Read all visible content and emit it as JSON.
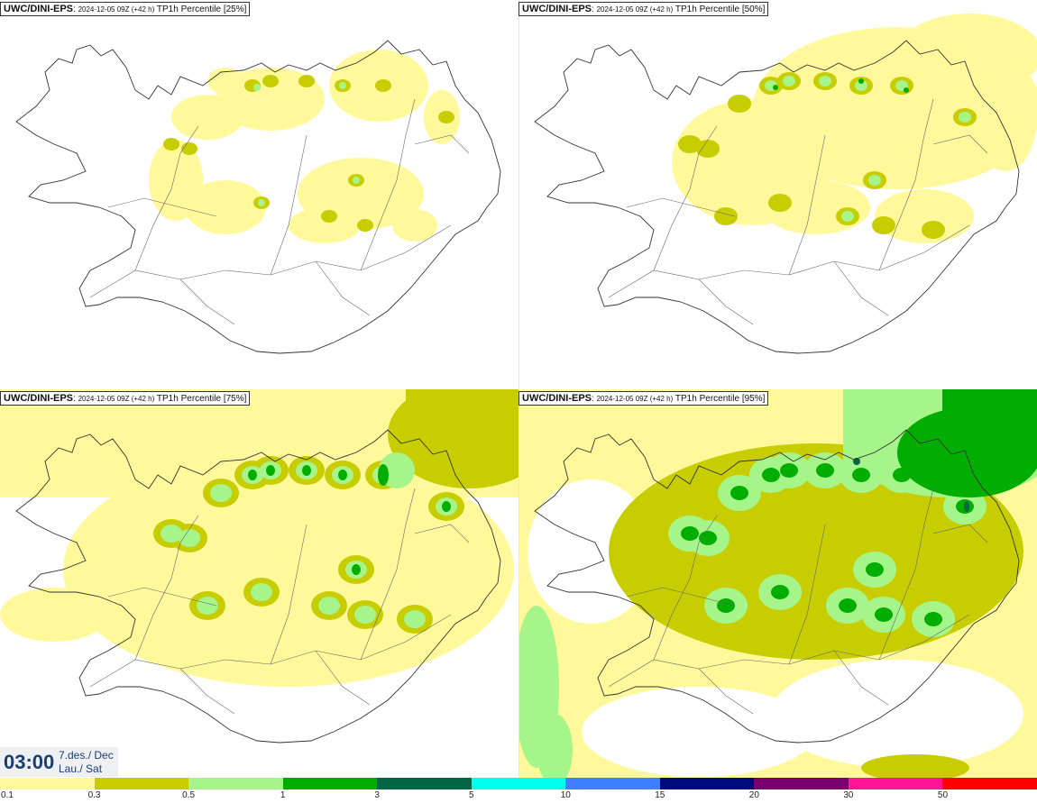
{
  "panels": [
    {
      "model": "UWC/DINI-EPS",
      "run": "2024-12-05 09Z (+42 h)",
      "field": "TP1h Percentile [25%]"
    },
    {
      "model": "UWC/DINI-EPS",
      "run": "2024-12-05 09Z (+42 h)",
      "field": "TP1h Percentile [50%]"
    },
    {
      "model": "UWC/DINI-EPS",
      "run": "2024-12-05 09Z (+42 h)",
      "field": "TP1h Percentile [75%]"
    },
    {
      "model": "UWC/DINI-EPS",
      "run": "2024-12-05 09Z (+42 h)",
      "field": "TP1h Percentile [95%]"
    }
  ],
  "valid_time": {
    "time": "03:00",
    "date": "7.des./ Dec",
    "weekday": "Lau./ Sat"
  },
  "legend": {
    "colors": [
      "#fff99c",
      "#c8cd00",
      "#a6f58a",
      "#00ad00",
      "#006644",
      "#00ffee",
      "#3d7fff",
      "#000a7a",
      "#7a006f",
      "#ff1493",
      "#ff0000"
    ],
    "tick_labels": [
      "0.1",
      "0.3",
      "0.5",
      "1",
      "3",
      "5",
      "10",
      "15",
      "20",
      "30",
      "50"
    ]
  }
}
